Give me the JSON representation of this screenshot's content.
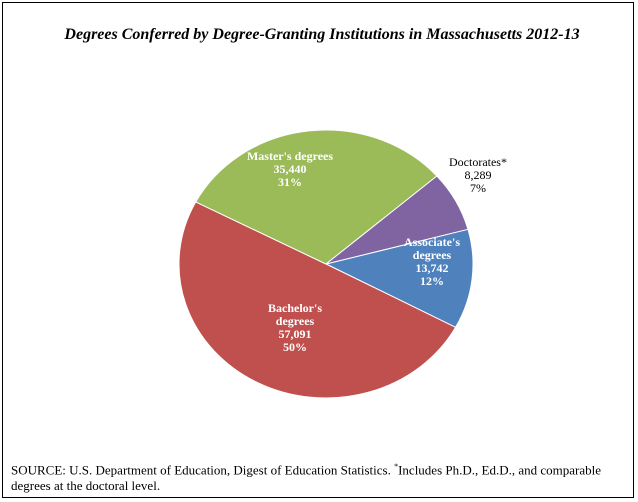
{
  "chart_data": {
    "type": "pie",
    "title": "Degrees Conferred by Degree-Granting Institutions in Massachusetts 2012-13",
    "categories": [
      "Associate's degrees",
      "Bachelor's degrees",
      "Master's degrees",
      "Doctorates*"
    ],
    "values": [
      13742,
      57091,
      35440,
      8289
    ],
    "value_labels": [
      "13,742",
      "57,091",
      "35,440",
      "8,289"
    ],
    "percent_labels": [
      "12%",
      "50%",
      "31%",
      "7%"
    ],
    "colors": [
      "#4f81bd",
      "#c0504d",
      "#9bbb59",
      "#8064a2"
    ],
    "source": "SOURCE: U.S. Department of Education, Digest of Education Statistics.",
    "footnote_mark": "*",
    "footnote": "Includes Ph.D., Ed.D., and comparable degrees at the doctoral level."
  }
}
